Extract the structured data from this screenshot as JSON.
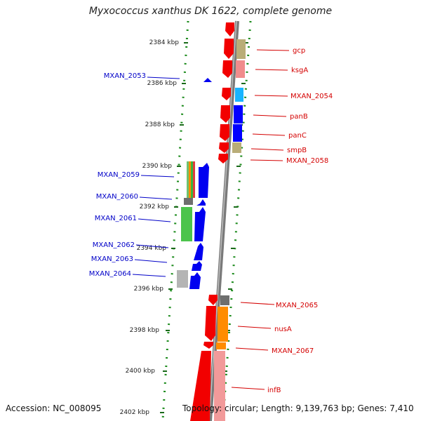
{
  "title": "Myxococcus xanthus DK 1622, complete genome",
  "accession": "Accession: NC_008095",
  "topology": "Topology: circular; Length: 9,139,763 bp; Genes: 7,410",
  "colors": {
    "backbone": "#808080",
    "forward_label": "#d40000",
    "reverse_label": "#0000c8",
    "dotted_ruler": "#1a8a1a"
  },
  "kbp_ticks": [
    "2384 kbp",
    "2386 kbp",
    "2388 kbp",
    "2390 kbp",
    "2392 kbp",
    "2394 kbp",
    "2396 kbp",
    "2398 kbp",
    "2400 kbp",
    "2402 kbp"
  ],
  "forward_genes": [
    "gcp",
    "ksgA",
    "MXAN_2054",
    "panB",
    "panC",
    "smpB",
    "MXAN_2058",
    "MXAN_2065",
    "nusA",
    "MXAN_2067",
    "infB"
  ],
  "reverse_genes": [
    "MXAN_2053",
    "MXAN_2059",
    "MXAN_2060",
    "MXAN_2061",
    "MXAN_2062",
    "MXAN_2063",
    "MXAN_2064"
  ]
}
